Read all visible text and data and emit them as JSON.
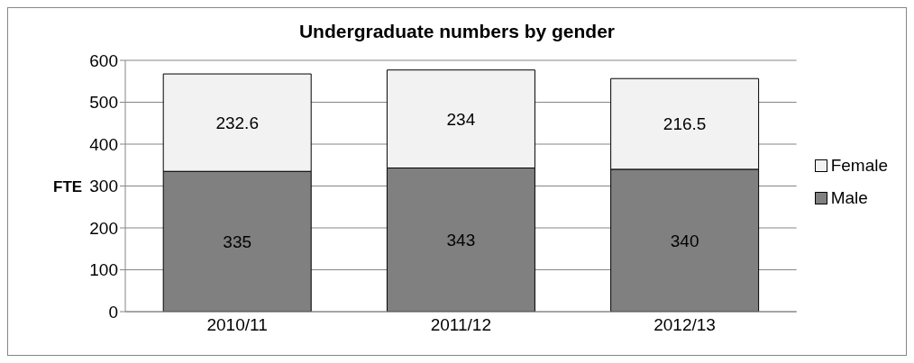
{
  "chart_data": {
    "type": "bar",
    "title": "Undergraduate numbers by gender",
    "ylabel": "FTE",
    "categories": [
      "2010/11",
      "2011/12",
      "2012/13"
    ],
    "series": [
      {
        "name": "Male",
        "color": "#808080",
        "values": [
          335,
          343,
          340
        ]
      },
      {
        "name": "Female",
        "color": "#f2f2f2",
        "values": [
          232.6,
          234,
          216.5
        ]
      }
    ],
    "stacked": true,
    "data_labels": true,
    "ylim": [
      0,
      600
    ],
    "yticks": [
      0,
      100,
      200,
      300,
      400,
      500,
      600
    ],
    "grid": "y",
    "legend": "right"
  }
}
